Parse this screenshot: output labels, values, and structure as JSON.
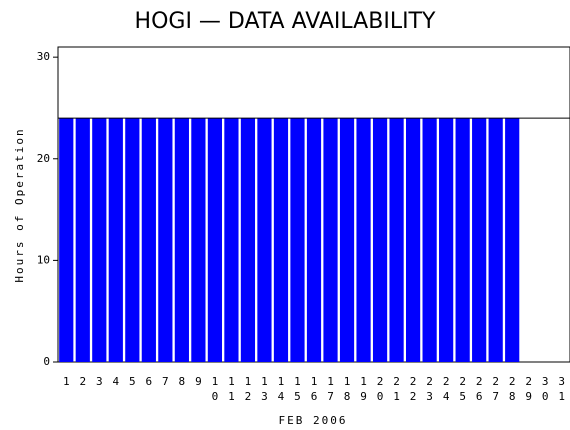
{
  "chart_data": {
    "type": "bar",
    "title": "HOGI — DATA AVAILABILITY",
    "x_label": "FEB 2006",
    "y_label": "Hours of Operation",
    "categories": [
      "1",
      "2",
      "3",
      "4",
      "5",
      "6",
      "7",
      "8",
      "9",
      "10",
      "11",
      "12",
      "13",
      "14",
      "15",
      "16",
      "17",
      "18",
      "19",
      "20",
      "21",
      "22",
      "23",
      "24",
      "25",
      "26",
      "27",
      "28",
      "29",
      "30",
      "31"
    ],
    "values": [
      24,
      24,
      24,
      24,
      24,
      24,
      24,
      24,
      24,
      24,
      24,
      24,
      24,
      24,
      24,
      24,
      24,
      24,
      24,
      24,
      24,
      24,
      24,
      24,
      24,
      24,
      24,
      24,
      null,
      null,
      null
    ],
    "color": "#0000ff",
    "reference_line": 24,
    "ylim": [
      0,
      31
    ],
    "yticks": [
      0,
      10,
      20,
      30
    ]
  }
}
